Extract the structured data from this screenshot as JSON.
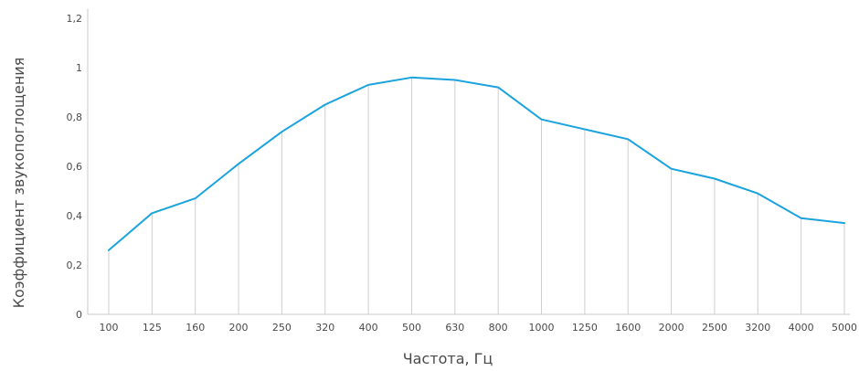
{
  "chart_data": {
    "type": "line",
    "title": "",
    "xlabel": "Частота, Гц",
    "ylabel": "Коэффициент звукопоглощения",
    "categories": [
      "100",
      "125",
      "160",
      "200",
      "250",
      "320",
      "400",
      "500",
      "630",
      "800",
      "1000",
      "1250",
      "1600",
      "2000",
      "2500",
      "3200",
      "4000",
      "5000"
    ],
    "series": [
      {
        "values": [
          0.26,
          0.41,
          0.47,
          0.61,
          0.74,
          0.85,
          0.93,
          0.96,
          0.95,
          0.92,
          0.79,
          0.75,
          0.71,
          0.59,
          0.55,
          0.49,
          0.39,
          0.37
        ],
        "color": "#1aa3dd"
      }
    ],
    "ylim": [
      0,
      1.2
    ],
    "yticks": [
      "0",
      "0,2",
      "0,4",
      "0,6",
      "0,8",
      "1",
      "1,2"
    ],
    "ytick_values": [
      0,
      0.2,
      0.4,
      0.6,
      0.8,
      1.0,
      1.2
    ],
    "grid": false,
    "drop_lines": true,
    "legend": "none"
  }
}
